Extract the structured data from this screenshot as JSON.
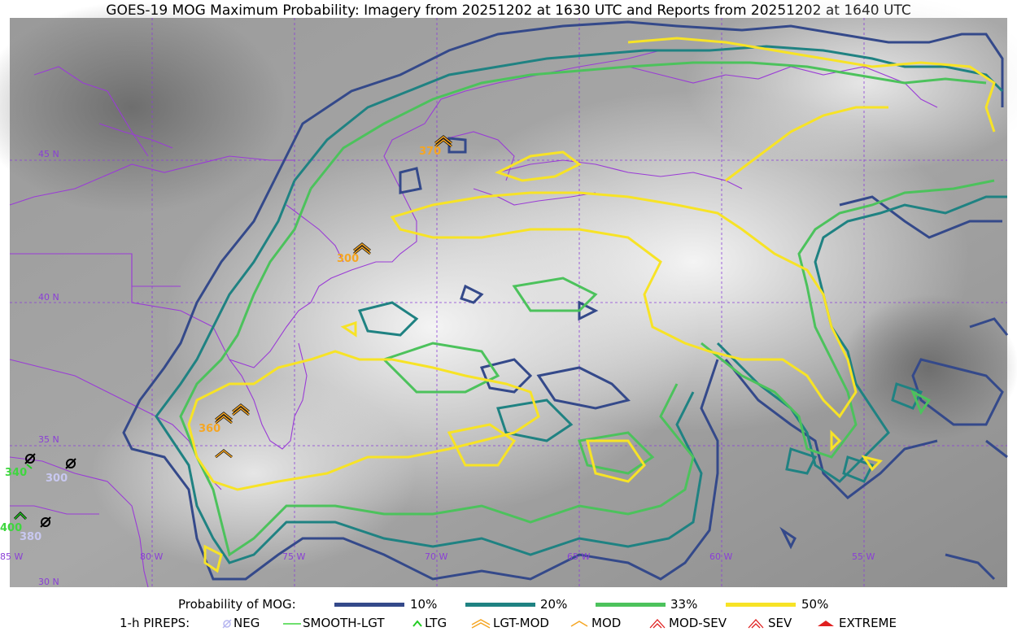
{
  "title": "GOES-19 MOG Maximum Probability: Imagery from 20251202 at 1630 UTC and Reports from 20251202 at 1640 UTC",
  "map": {
    "lat_labels": [
      "45 N",
      "40 N",
      "35 N",
      "30 N"
    ],
    "lon_labels": [
      "85 W",
      "80 W",
      "75 W",
      "70 W",
      "65 W",
      "60 W",
      "55 W"
    ],
    "colors": {
      "p10": "#34498a",
      "p20": "#1f8282",
      "p33": "#4cc25c",
      "p50": "#f7e326",
      "border": "#9a3cd6",
      "grid": "#8a3fd6"
    },
    "pirep_altitudes": [
      {
        "text": "370",
        "color": "#f5a623"
      },
      {
        "text": "300",
        "color": "#f5a623"
      },
      {
        "text": "360",
        "color": "#f5a623"
      },
      {
        "text": "340",
        "color": "#3fd63f"
      },
      {
        "text": "300",
        "color": "#c8c8f0"
      },
      {
        "text": "380",
        "color": "#c8c8f0"
      },
      {
        "text": "400",
        "color": "#3fd63f"
      }
    ]
  },
  "legend": {
    "prob_title": "Probability of MOG:",
    "prob_items": [
      {
        "label": "10%",
        "color": "#34498a"
      },
      {
        "label": "20%",
        "color": "#1f8282"
      },
      {
        "label": "33%",
        "color": "#4cc25c"
      },
      {
        "label": "50%",
        "color": "#f7e326"
      }
    ],
    "pirep_title": "1-h PIREPS:",
    "pirep_items": [
      {
        "label": "NEG",
        "color": "#b7b7f0",
        "icon": "neg-icon"
      },
      {
        "label": "SMOOTH-LGT",
        "color": "#3fd63f",
        "icon": "smooth-lgt-icon"
      },
      {
        "label": "LTG",
        "color": "#22cc22",
        "icon": "ltg-icon"
      },
      {
        "label": "LGT-MOD",
        "color": "#f5a623",
        "icon": "lgt-mod-icon"
      },
      {
        "label": "MOD",
        "color": "#f5a623",
        "icon": "mod-icon"
      },
      {
        "label": "MOD-SEV",
        "color": "#e02020",
        "icon": "mod-sev-icon"
      },
      {
        "label": "SEV",
        "color": "#e02020",
        "icon": "sev-icon"
      },
      {
        "label": "EXTREME",
        "color": "#e02020",
        "icon": "extreme-icon"
      }
    ]
  }
}
